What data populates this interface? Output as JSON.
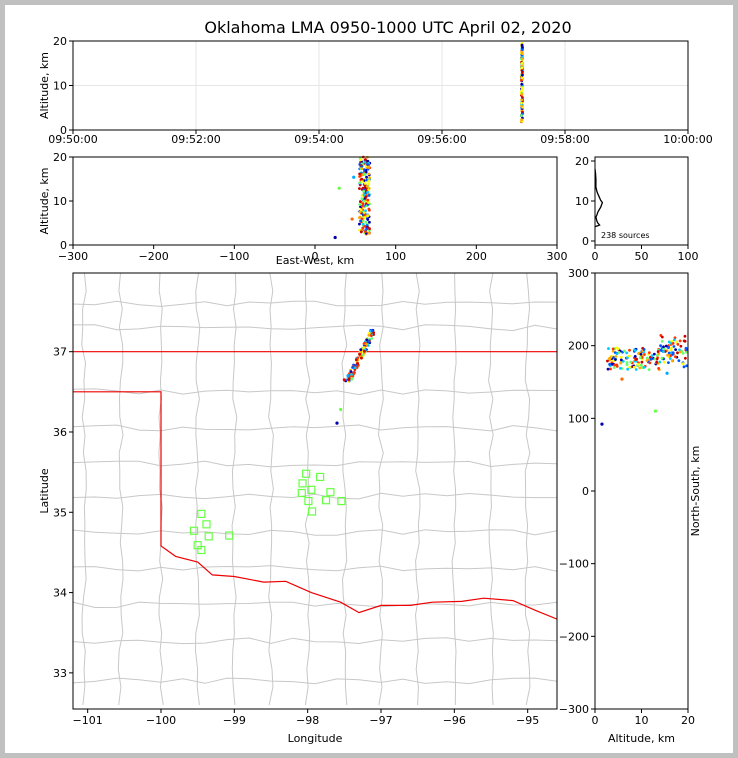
{
  "window": {
    "frame_color": "#c0c0c0"
  },
  "chart_data": [
    {
      "id": "time_height",
      "type": "scatter",
      "title": "Oklahoma LMA 0950-1000 UTC April 02, 2020",
      "xlabel": "",
      "ylabel": "Altitude, km",
      "x_ticks": [
        "09:50:00",
        "09:52:00",
        "09:54:00",
        "09:56:00",
        "09:58:00",
        "10:00:00"
      ],
      "xlim_minutes": [
        0,
        10
      ],
      "ylim": [
        0,
        20
      ],
      "y_ticks": [
        0,
        10,
        20
      ],
      "grid": true,
      "cluster": {
        "time": "09:57:18",
        "alt_range_km": [
          1.8,
          19.5
        ]
      }
    },
    {
      "id": "east_west_altitude",
      "type": "scatter",
      "xlabel": "East-West, km",
      "ylabel": "Altitude, km",
      "xlim": [
        -300,
        300
      ],
      "x_ticks": [
        -300,
        -200,
        -100,
        0,
        100,
        200,
        300
      ],
      "ylim": [
        0,
        20
      ],
      "y_ticks": [
        0,
        10,
        20
      ],
      "cluster": {
        "x_km": [
          55,
          68
        ],
        "alt_range_km": [
          2.5,
          20
        ]
      },
      "outliers": [
        {
          "x": 25,
          "alt": 1.7,
          "color": "#0000aa"
        },
        {
          "x": 30,
          "alt": 12.9,
          "color": "#66ff44"
        },
        {
          "x": 48,
          "alt": 15.4,
          "color": "#00aaff"
        },
        {
          "x": 46,
          "alt": 5.9,
          "color": "#ff6600"
        }
      ]
    },
    {
      "id": "altitude_histogram",
      "type": "line",
      "annotation": "238 sources",
      "xlim": [
        0,
        100
      ],
      "x_ticks": [
        0,
        50,
        100
      ],
      "ylim": [
        0,
        20
      ],
      "y_ticks": [
        0,
        10,
        20
      ],
      "histogram": [
        [
          0,
          3.6
        ],
        [
          3,
          3.8
        ],
        [
          5,
          4.0
        ],
        [
          3,
          4.5
        ],
        [
          2,
          5.0
        ],
        [
          1,
          6.0
        ],
        [
          2,
          6.5
        ],
        [
          3,
          7.2
        ],
        [
          5,
          8.0
        ],
        [
          6,
          8.4
        ],
        [
          7,
          9.0
        ],
        [
          8,
          9.6
        ],
        [
          6,
          10.2
        ],
        [
          5,
          10.8
        ],
        [
          4,
          11.3
        ],
        [
          3,
          11.8
        ],
        [
          2,
          12.4
        ],
        [
          1,
          13.5
        ],
        [
          1,
          14.5
        ],
        [
          1,
          15.5
        ],
        [
          0.5,
          17
        ],
        [
          0,
          18
        ]
      ]
    },
    {
      "id": "plan_view",
      "type": "scatter",
      "xlabel": "Longitude",
      "ylabel": "Latitude",
      "xlim": [
        -101.2,
        -94.6
      ],
      "ylim": [
        32.55,
        37.98
      ],
      "x_ticks": [
        -101,
        -100,
        -99,
        -98,
        -97,
        -96,
        -95
      ],
      "y_ticks": [
        33,
        34,
        35,
        36,
        37
      ],
      "stations": [
        [
          -98.02,
          35.48
        ],
        [
          -97.83,
          35.44
        ],
        [
          -98.07,
          35.36
        ],
        [
          -97.95,
          35.28
        ],
        [
          -98.08,
          35.24
        ],
        [
          -97.69,
          35.25
        ],
        [
          -97.99,
          35.14
        ],
        [
          -97.75,
          35.15
        ],
        [
          -97.54,
          35.14
        ],
        [
          -97.94,
          35.01
        ],
        [
          -99.45,
          34.98
        ],
        [
          -99.38,
          34.85
        ],
        [
          -99.55,
          34.77
        ],
        [
          -99.35,
          34.7
        ],
        [
          -99.07,
          34.71
        ],
        [
          -99.5,
          34.59
        ],
        [
          -99.45,
          34.53
        ]
      ],
      "cluster": {
        "lon_range": [
          -97.45,
          -97.1
        ],
        "lat_range": [
          36.63,
          37.28
        ]
      },
      "outliers": [
        {
          "lon": -97.6,
          "lat": 36.11,
          "color": "#0000aa"
        },
        {
          "lon": -97.55,
          "lat": 36.28,
          "color": "#66ff44"
        },
        {
          "lon": -97.45,
          "lat": 36.7,
          "color": "#00aaff"
        },
        {
          "lon": -97.5,
          "lat": 36.65,
          "color": "#ff0000"
        }
      ]
    },
    {
      "id": "altitude_north_south",
      "type": "scatter",
      "xlabel": "Altitude, km",
      "ylabel": "North-South, km",
      "xlim": [
        0,
        20
      ],
      "x_ticks": [
        0,
        10,
        20
      ],
      "ylim": [
        -300,
        300
      ],
      "y_ticks": [
        -300,
        -200,
        -100,
        0,
        100,
        200,
        300
      ],
      "cluster": {
        "alt_range_km": [
          2.5,
          20
        ],
        "ns_range_km": [
          150,
          220
        ]
      },
      "outliers": [
        {
          "alt": 1.5,
          "ns": 92,
          "color": "#0000aa"
        },
        {
          "alt": 13,
          "ns": 110,
          "color": "#66ff44"
        },
        {
          "alt": 15.5,
          "ns": 162,
          "color": "#00aaff"
        },
        {
          "alt": 5.8,
          "ns": 154,
          "color": "#ff6600"
        }
      ]
    }
  ],
  "colors": {
    "state_border": "#ee0000",
    "county_lines": "#c8c8c8",
    "station_marker": "#66ff44",
    "histogram": "#000000",
    "sequence_colormap": [
      "#0000aa",
      "#0055ff",
      "#00ccff",
      "#66ff66",
      "#ffff00",
      "#ffaa00",
      "#ff3300",
      "#cc0000"
    ]
  }
}
